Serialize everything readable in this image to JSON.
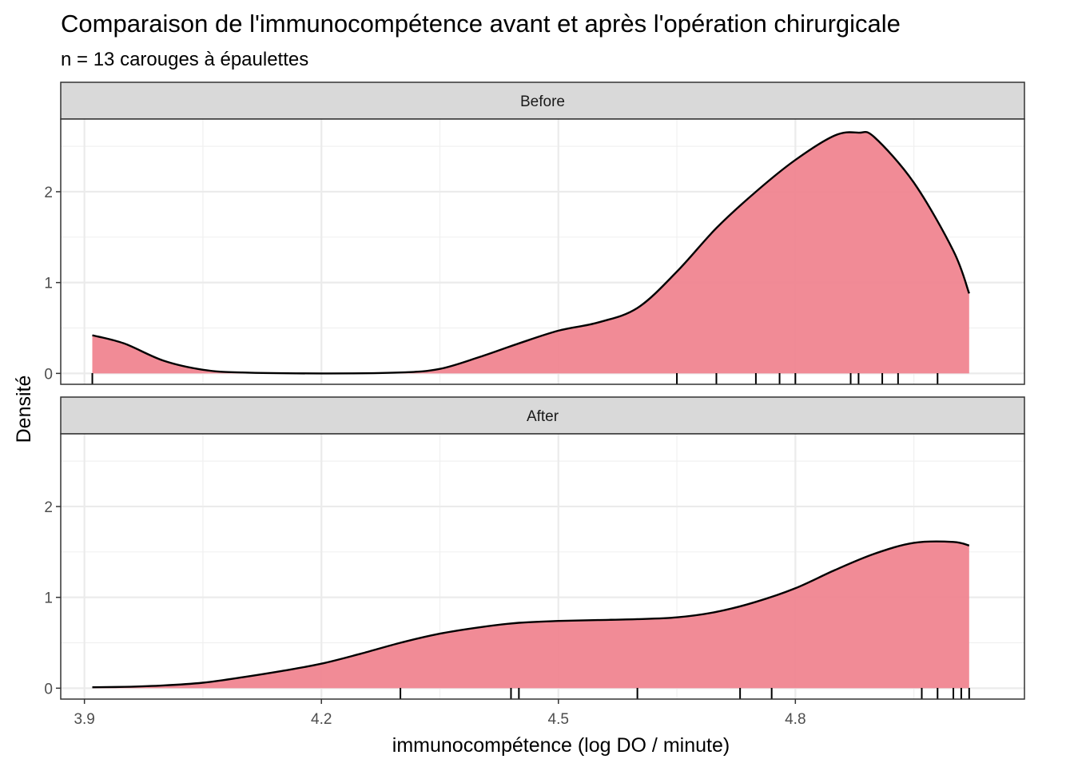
{
  "chart_data": {
    "type": "area",
    "title": "Comparaison de l'immunocompétence avant et après l'opération chirurgicale",
    "subtitle": "n = 13 carouges à épaulettes",
    "xlabel": "immunocompétence (log DO / minute)",
    "ylabel": "Densité",
    "xlim": [
      3.87,
      5.09
    ],
    "ylim": [
      -0.12,
      2.8
    ],
    "x_ticks": [
      3.9,
      4.2,
      4.5,
      4.8
    ],
    "x_tick_labels": [
      "3.9",
      "4.2",
      "4.5",
      "4.8"
    ],
    "y_ticks": [
      0,
      1,
      2
    ],
    "y_tick_labels": [
      "0",
      "1",
      "2"
    ],
    "grid": true,
    "fill_color": "#f08590",
    "panels": [
      {
        "name": "Before",
        "density": {
          "x": [
            3.91,
            3.95,
            4.0,
            4.05,
            4.1,
            4.2,
            4.3,
            4.35,
            4.4,
            4.45,
            4.5,
            4.55,
            4.6,
            4.65,
            4.7,
            4.75,
            4.8,
            4.85,
            4.88,
            4.9,
            4.95,
            5.0,
            5.02
          ],
          "y": [
            0.42,
            0.33,
            0.14,
            0.04,
            0.01,
            0.0,
            0.01,
            0.05,
            0.18,
            0.33,
            0.47,
            0.56,
            0.72,
            1.12,
            1.6,
            2.0,
            2.35,
            2.62,
            2.65,
            2.6,
            2.1,
            1.35,
            0.88
          ]
        },
        "rug": [
          3.91,
          4.65,
          4.7,
          4.75,
          4.78,
          4.8,
          4.87,
          4.88,
          4.91,
          4.93,
          4.98
        ]
      },
      {
        "name": "After",
        "density": {
          "x": [
            3.91,
            3.95,
            4.0,
            4.05,
            4.1,
            4.15,
            4.2,
            4.25,
            4.3,
            4.35,
            4.4,
            4.45,
            4.5,
            4.55,
            4.6,
            4.65,
            4.7,
            4.75,
            4.8,
            4.85,
            4.9,
            4.95,
            5.0,
            5.02
          ],
          "y": [
            0.01,
            0.015,
            0.03,
            0.06,
            0.12,
            0.19,
            0.27,
            0.38,
            0.5,
            0.6,
            0.67,
            0.72,
            0.74,
            0.75,
            0.76,
            0.78,
            0.84,
            0.95,
            1.1,
            1.3,
            1.48,
            1.6,
            1.61,
            1.57
          ]
        },
        "rug": [
          4.3,
          4.44,
          4.45,
          4.6,
          4.73,
          4.77,
          4.96,
          4.98,
          5.0,
          5.01,
          5.02
        ]
      }
    ]
  }
}
